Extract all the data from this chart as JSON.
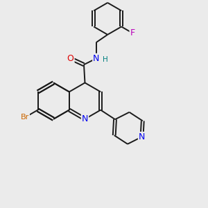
{
  "background_color": "#ebebeb",
  "bond_color": "#1a1a1a",
  "atom_colors": {
    "N": "#0000ee",
    "O": "#dd0000",
    "Br": "#cc6600",
    "F": "#bb00bb",
    "H": "#008080",
    "C": "#1a1a1a"
  },
  "figsize": [
    3.0,
    3.0
  ],
  "dpi": 100
}
